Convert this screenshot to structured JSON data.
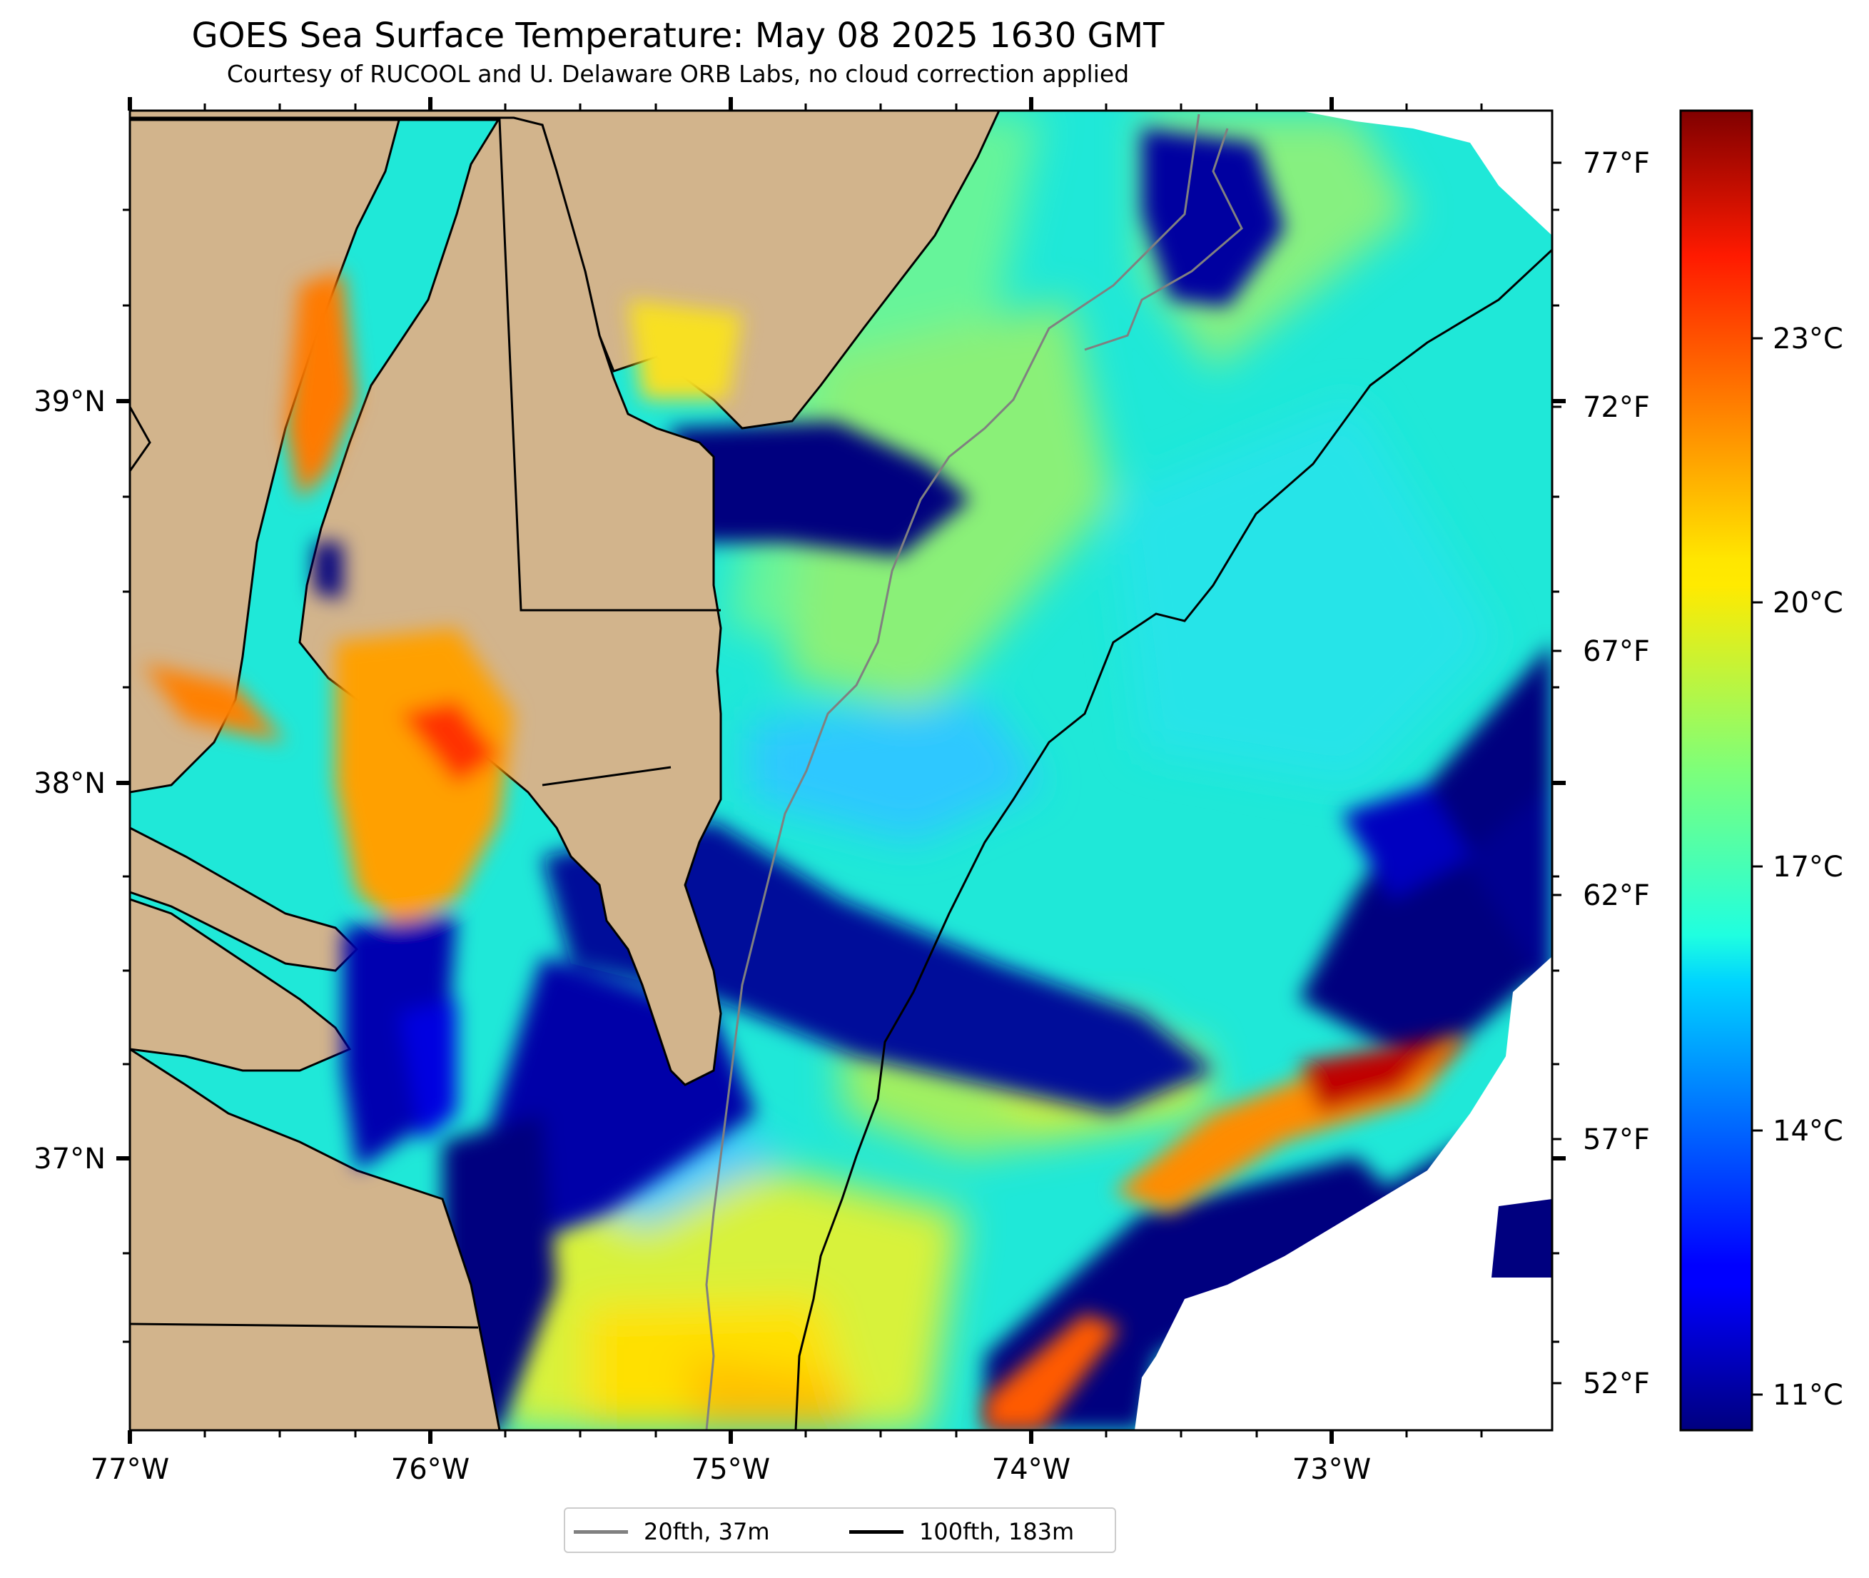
{
  "title": "GOES Sea Surface Temperature: May 08 2025 1630 GMT",
  "subtitle": "Courtesy of RUCOOL and U. Delaware ORB Labs, no cloud correction applied",
  "map": {
    "lon_range": [
      -77.0,
      -72.27
    ],
    "lat_range": [
      36.2,
      39.7
    ],
    "lon_ticks": [
      "77°W",
      "76°W",
      "75°W",
      "74°W",
      "73°W"
    ],
    "lat_ticks": [
      "39°N",
      "38°N",
      "37°N"
    ],
    "land_color": "#d2b48c",
    "no_data_color": "#ffffff"
  },
  "right_axis": {
    "unit": "°F",
    "ticks": [
      "77°F",
      "72°F",
      "67°F",
      "62°F",
      "57°F",
      "52°F"
    ]
  },
  "colorbar": {
    "colormap": "jet",
    "range_c": [
      10.0,
      25.0
    ],
    "ticks": [
      "23°C",
      "20°C",
      "17°C",
      "14°C",
      "11°C"
    ]
  },
  "legend": [
    {
      "label": "20fth, 37m",
      "color": "#808080"
    },
    {
      "label": "100fth, 183m",
      "color": "#000000"
    }
  ]
}
